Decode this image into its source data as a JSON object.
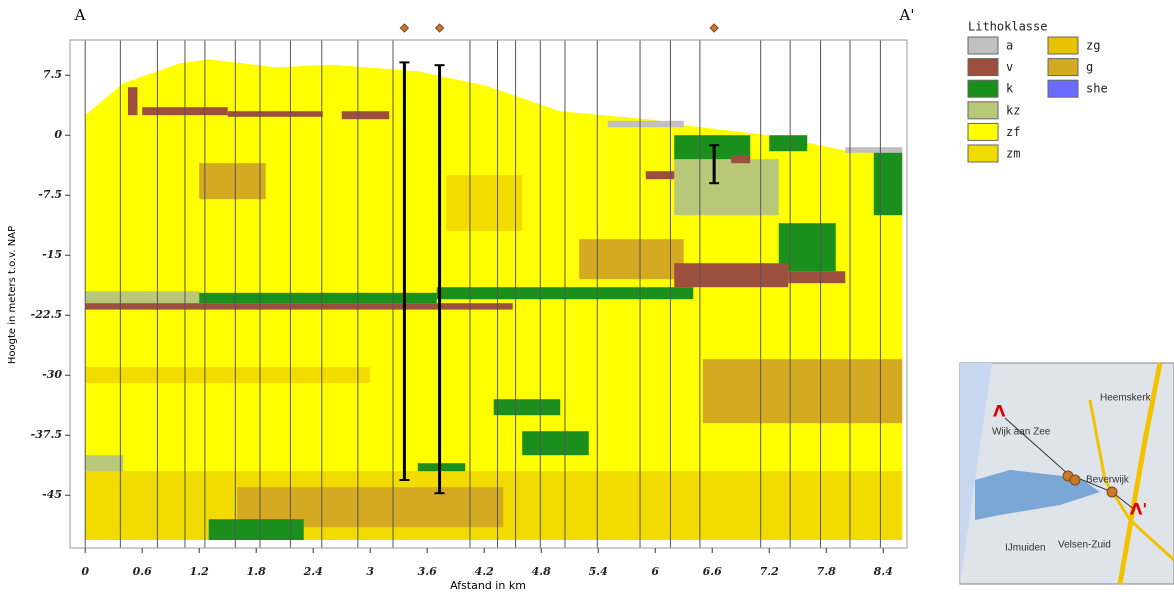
{
  "chart_data": {
    "type": "section",
    "label_left": "A",
    "label_right": "A'",
    "xlabel": "Afstand in km",
    "ylabel": "Hoogte in meters t.o.v. NAP",
    "xlim": [
      -0.16,
      8.65
    ],
    "ylim": [
      -51.6,
      11.9
    ],
    "xticks": [
      0,
      0.6,
      1.2,
      1.8,
      2.4,
      3,
      3.6,
      4.2,
      4.8,
      5.4,
      6,
      6.6,
      7.2,
      7.8,
      8.4
    ],
    "yticks": [
      7.5,
      0,
      -7.5,
      -15,
      -22.5,
      -30,
      -37.5,
      -45
    ],
    "legend_title": "Lithoklasse",
    "classes": [
      {
        "name": "a",
        "color": "#c0c0c0"
      },
      {
        "name": "v",
        "color": "#9c4f3c"
      },
      {
        "name": "k",
        "color": "#1b8f1b"
      },
      {
        "name": "kz",
        "color": "#b9c878"
      },
      {
        "name": "zf",
        "color": "#ffff00"
      },
      {
        "name": "zm",
        "color": "#f2dc00"
      },
      {
        "name": "zg",
        "color": "#e6c300"
      },
      {
        "name": "g",
        "color": "#d4aa22"
      },
      {
        "name": "she",
        "color": "#6b6bff"
      }
    ],
    "base": -50.6,
    "surface": {
      "x": [
        0,
        0.4,
        1.0,
        1.3,
        2.0,
        2.6,
        3.5,
        4.2,
        5.0,
        6.0,
        6.3,
        7.2,
        8.0,
        8.6
      ],
      "y": [
        2.5,
        6.5,
        9.0,
        9.5,
        8.5,
        8.8,
        8.0,
        6.25,
        3.0,
        1.9,
        1.25,
        0,
        -1.9,
        -1.9
      ]
    },
    "blocks": [
      {
        "class": "g",
        "x": [
          1.2,
          1.9
        ],
        "y": [
          -3.5,
          -8
        ]
      },
      {
        "class": "zm",
        "x": [
          3.8,
          4.6
        ],
        "y": [
          -5,
          -12
        ]
      },
      {
        "class": "zm",
        "x": [
          0,
          3.0
        ],
        "y": [
          -29,
          -31
        ]
      },
      {
        "class": "g",
        "x": [
          5.2,
          6.3
        ],
        "y": [
          -13,
          -18
        ]
      },
      {
        "class": "g",
        "x": [
          6.5,
          8.6
        ],
        "y": [
          -28,
          -36
        ]
      },
      {
        "class": "zm",
        "x": [
          0,
          8.6
        ],
        "y": [
          -42,
          -50.6
        ]
      },
      {
        "class": "g",
        "x": [
          1.6,
          4.4
        ],
        "y": [
          -44,
          -49
        ]
      },
      {
        "class": "kz",
        "x": [
          6.2,
          7.3
        ],
        "y": [
          -3,
          -10
        ]
      },
      {
        "class": "k",
        "x": [
          6.2,
          7.0
        ],
        "y": [
          0,
          -3
        ]
      },
      {
        "class": "k",
        "x": [
          7.2,
          7.6
        ],
        "y": [
          0,
          -2
        ]
      },
      {
        "class": "k",
        "x": [
          8.3,
          8.6
        ],
        "y": [
          -2,
          -10
        ]
      },
      {
        "class": "k",
        "x": [
          7.3,
          7.9
        ],
        "y": [
          -11,
          -17
        ]
      },
      {
        "class": "v",
        "x": [
          6.2,
          7.4
        ],
        "y": [
          -16,
          -19
        ]
      },
      {
        "class": "v",
        "x": [
          7.4,
          8.0
        ],
        "y": [
          -17,
          -18.5
        ]
      },
      {
        "class": "kz",
        "x": [
          0,
          1.2
        ],
        "y": [
          -19.5,
          -21
        ]
      },
      {
        "class": "k",
        "x": [
          1.2,
          3.7
        ],
        "y": [
          -19.7,
          -21
        ]
      },
      {
        "class": "k",
        "x": [
          3.7,
          6.4
        ],
        "y": [
          -19,
          -20.5
        ]
      },
      {
        "class": "v",
        "x": [
          0,
          4.5
        ],
        "y": [
          -21,
          -21.8
        ]
      },
      {
        "class": "v",
        "x": [
          0.45,
          0.55
        ],
        "y": [
          6,
          2.5
        ]
      },
      {
        "class": "v",
        "x": [
          0.6,
          1.5
        ],
        "y": [
          3.5,
          2.5
        ]
      },
      {
        "class": "v",
        "x": [
          1.5,
          2.5
        ],
        "y": [
          3,
          2.3
        ]
      },
      {
        "class": "v",
        "x": [
          2.7,
          3.2
        ],
        "y": [
          3,
          2
        ]
      },
      {
        "class": "v",
        "x": [
          5.9,
          6.2
        ],
        "y": [
          -4.5,
          -5.5
        ]
      },
      {
        "class": "v",
        "x": [
          6.8,
          7.0
        ],
        "y": [
          -2.5,
          -3.5
        ]
      },
      {
        "class": "k",
        "x": [
          4.3,
          5.0
        ],
        "y": [
          -33,
          -35
        ]
      },
      {
        "class": "k",
        "x": [
          4.6,
          5.3
        ],
        "y": [
          -37,
          -40
        ]
      },
      {
        "class": "k",
        "x": [
          3.5,
          4.0
        ],
        "y": [
          -41,
          -42
        ]
      },
      {
        "class": "k",
        "x": [
          1.3,
          2.3
        ],
        "y": [
          -48,
          -50.6
        ]
      },
      {
        "class": "kz",
        "x": [
          0,
          0.4
        ],
        "y": [
          -40,
          -42
        ]
      },
      {
        "class": "a",
        "x": [
          5.5,
          6.3
        ],
        "y": [
          1.8,
          1
        ]
      },
      {
        "class": "a",
        "x": [
          8.0,
          8.6
        ],
        "y": [
          -1.5,
          -2.2
        ]
      }
    ],
    "boreholes_x": [
      0,
      0.37,
      0.76,
      1.05,
      1.26,
      1.58,
      1.84,
      2.16,
      2.49,
      2.87,
      3.24,
      4.05,
      4.34,
      4.53,
      4.79,
      5.05,
      5.39,
      5.84,
      6.16,
      6.47,
      7.11,
      7.42,
      7.74,
      8.05,
      8.37,
      8.65
    ],
    "drillings": [
      {
        "x": 3.36,
        "top": 9.1,
        "bottom": -43.1
      },
      {
        "x": 3.73,
        "top": 8.75,
        "bottom": -44.75
      },
      {
        "x": 6.62,
        "top": -1.25,
        "bottom": -6.0
      }
    ],
    "map": {
      "places": [
        "Heemskerk",
        "Wijk aan Zee",
        "Beverwijk",
        "IJmuiden",
        "Velsen-Zuid"
      ],
      "start": "Λ",
      "end": "Λ'"
    }
  }
}
